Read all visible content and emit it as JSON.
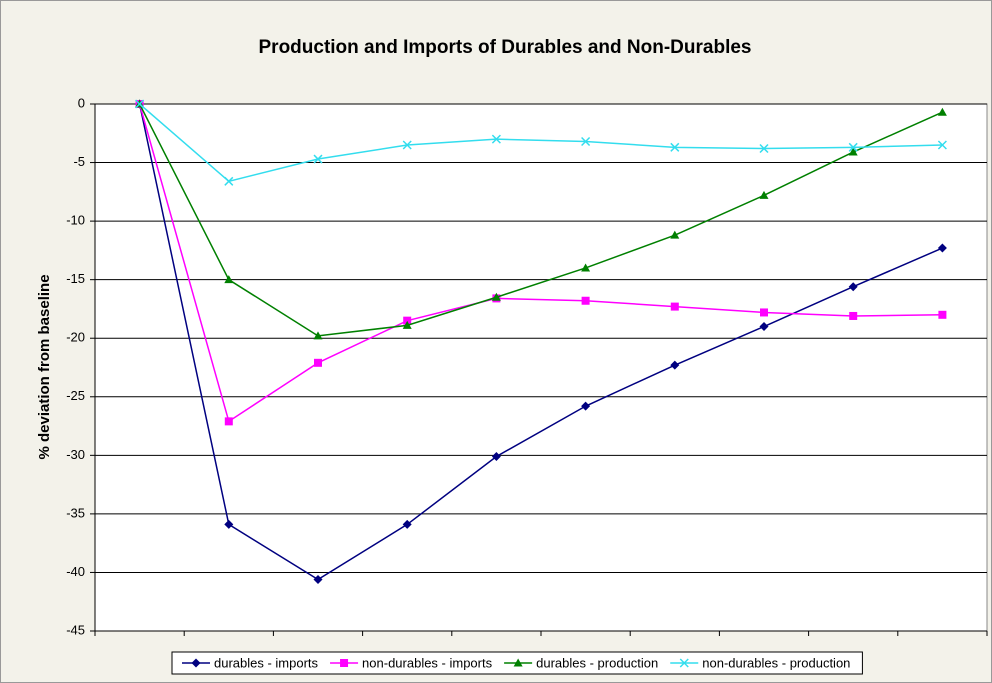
{
  "chart_data": {
    "type": "line",
    "title": "Production and Imports of Durables and Non-Durables",
    "y_label": "% deviation from baseline",
    "categories": [
      null,
      null,
      null,
      null,
      null,
      null,
      null,
      null,
      null,
      null
    ],
    "series": [
      {
        "name": "durables - imports",
        "color": "#000080",
        "marker": "diamond",
        "values": [
          0,
          -35.9,
          -40.6,
          -35.9,
          -30.1,
          -25.8,
          -22.3,
          -19.0,
          -15.6,
          -12.3
        ]
      },
      {
        "name": "non-durables - imports",
        "color": "#ff00ff",
        "marker": "square",
        "values": [
          0,
          -27.1,
          -22.1,
          -18.5,
          -16.6,
          -16.8,
          -17.3,
          -17.8,
          -18.1,
          -18.0
        ]
      },
      {
        "name": "durables - production",
        "color": "#008000",
        "marker": "triangle",
        "values": [
          0,
          -15.0,
          -19.8,
          -18.9,
          -16.5,
          -14.0,
          -11.2,
          -7.8,
          -4.1,
          -0.7
        ]
      },
      {
        "name": "non-durables - production",
        "color": "#33ddee",
        "marker": "x",
        "values": [
          0,
          -6.6,
          -4.7,
          -3.5,
          -3.0,
          -3.2,
          -3.7,
          -3.8,
          -3.7,
          -3.5
        ]
      }
    ],
    "ylim": [
      -45,
      0
    ],
    "yticks": [
      0,
      -5,
      -10,
      -15,
      -20,
      -25,
      -30,
      -35,
      -40,
      -45
    ],
    "grid": true,
    "legend": "bottom"
  }
}
